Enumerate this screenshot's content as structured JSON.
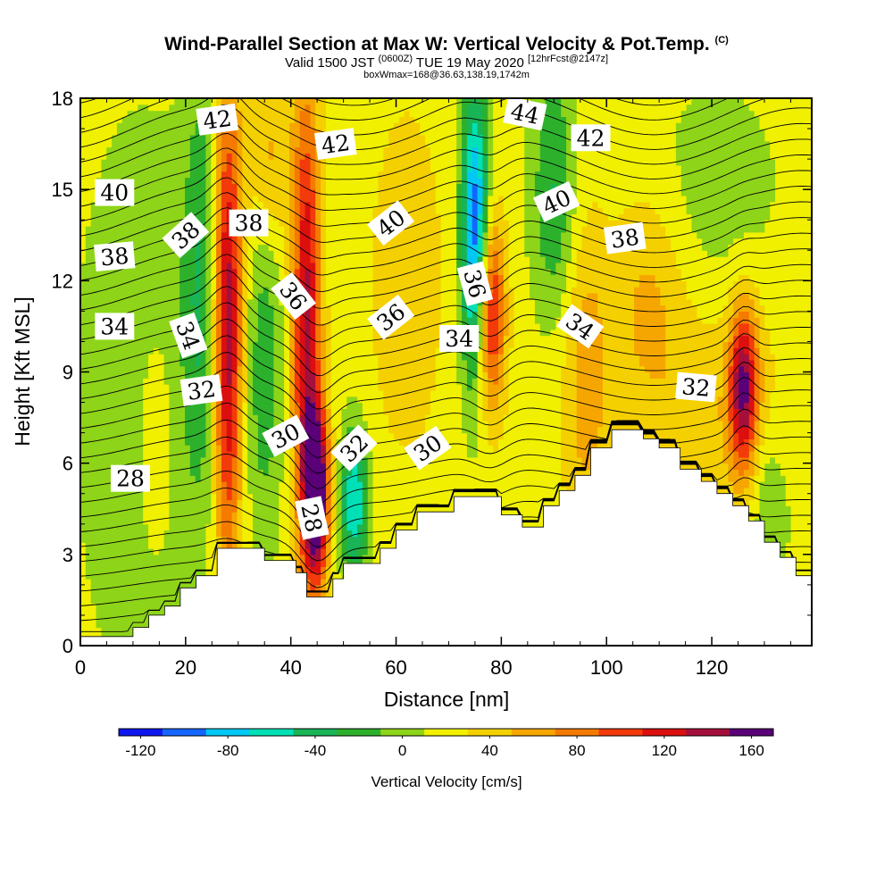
{
  "header": {
    "title_main": "Wind-Parallel Section at Max W: Vertical Velocity & Pot.Temp.",
    "title_mark": "(C)",
    "valid_a": "Valid 1500 JST ",
    "valid_b": "(0600Z)",
    "valid_c": " TUE 19 May 2020 ",
    "valid_d": "[12hrFcst@2147z]",
    "box_info": "boxWmax=168@36.63,138.19,1742m"
  },
  "chart_data": {
    "type": "heatmap",
    "title": "Wind-Parallel Section at Max W: Vertical Velocity & Pot.Temp.",
    "xlabel": "Distance [nm]",
    "ylabel": "Height [Kft MSL]",
    "xlim": [
      0,
      139
    ],
    "ylim": [
      0,
      18
    ],
    "x_ticks": [
      "0",
      "20",
      "40",
      "60",
      "80",
      "100",
      "120"
    ],
    "y_ticks": [
      "0",
      "3",
      "6",
      "9",
      "12",
      "15",
      "18"
    ],
    "colorbar": {
      "label": "Vertical Velocity [cm/s]",
      "tick_labels": [
        "-120",
        "-80",
        "-40",
        "0",
        "40",
        "80",
        "120",
        "160"
      ],
      "levels": [
        -140,
        -120,
        -100,
        -80,
        -60,
        -40,
        -20,
        0,
        20,
        40,
        60,
        80,
        100,
        120,
        140,
        160,
        180
      ],
      "colors": [
        "#0f16f0",
        "#1466ff",
        "#00c8f5",
        "#00e0b6",
        "#18b456",
        "#2db12d",
        "#8ed419",
        "#f0f000",
        "#f5d000",
        "#f6a600",
        "#f57a00",
        "#f23a0a",
        "#dc0f0f",
        "#a50f3c",
        "#5a0078"
      ]
    },
    "terrain": [
      [
        0,
        0.3
      ],
      [
        10,
        0.3
      ],
      [
        10,
        0.6
      ],
      [
        13,
        0.6
      ],
      [
        13,
        1.0
      ],
      [
        16,
        1.0
      ],
      [
        16,
        1.3
      ],
      [
        19,
        1.3
      ],
      [
        19,
        1.9
      ],
      [
        22,
        1.9
      ],
      [
        22,
        2.3
      ],
      [
        26,
        2.3
      ],
      [
        26,
        3.2
      ],
      [
        35,
        3.2
      ],
      [
        35,
        2.8
      ],
      [
        41,
        2.8
      ],
      [
        41,
        2.4
      ],
      [
        43,
        2.4
      ],
      [
        43,
        1.6
      ],
      [
        48,
        1.6
      ],
      [
        48,
        2.2
      ],
      [
        50,
        2.2
      ],
      [
        50,
        2.7
      ],
      [
        57,
        2.7
      ],
      [
        57,
        3.2
      ],
      [
        60,
        3.2
      ],
      [
        60,
        3.8
      ],
      [
        64,
        3.8
      ],
      [
        64,
        4.4
      ],
      [
        71,
        4.4
      ],
      [
        71,
        4.9
      ],
      [
        80,
        4.9
      ],
      [
        80,
        4.3
      ],
      [
        84,
        4.3
      ],
      [
        84,
        3.9
      ],
      [
        88,
        3.9
      ],
      [
        88,
        4.6
      ],
      [
        91,
        4.6
      ],
      [
        91,
        5.1
      ],
      [
        94,
        5.1
      ],
      [
        94,
        5.6
      ],
      [
        97,
        5.6
      ],
      [
        97,
        6.5
      ],
      [
        101,
        6.5
      ],
      [
        101,
        7.1
      ],
      [
        107,
        7.1
      ],
      [
        107,
        6.8
      ],
      [
        110,
        6.8
      ],
      [
        110,
        6.5
      ],
      [
        114,
        6.5
      ],
      [
        114,
        5.8
      ],
      [
        118,
        5.8
      ],
      [
        118,
        5.4
      ],
      [
        121,
        5.4
      ],
      [
        121,
        5.0
      ],
      [
        124,
        5.0
      ],
      [
        124,
        4.6
      ],
      [
        127,
        4.6
      ],
      [
        127,
        4.1
      ],
      [
        130,
        4.1
      ],
      [
        130,
        3.4
      ],
      [
        133,
        3.4
      ],
      [
        133,
        2.9
      ],
      [
        136,
        2.9
      ],
      [
        136,
        2.3
      ],
      [
        139,
        2.3
      ]
    ],
    "vertical_velocity_features": [
      {
        "x": 28,
        "z_bottom": 3,
        "z_top": 18,
        "peak": 130
      },
      {
        "x": 43,
        "z_bottom": 2.5,
        "z_top": 18,
        "peak": 120
      },
      {
        "x": 45,
        "z_bottom": 2.5,
        "z_top": 7.5,
        "peak": 168
      },
      {
        "x": 75,
        "z_bottom": 9,
        "z_top": 18,
        "peak": -130
      },
      {
        "x": 78,
        "z_bottom": 8,
        "z_top": 14,
        "peak": 110
      },
      {
        "x": 52,
        "z_bottom": 2.5,
        "z_top": 7,
        "peak": -90
      },
      {
        "x": 126,
        "z_bottom": 6,
        "z_top": 11,
        "peak": 125
      }
    ],
    "theta_contour_labels": [
      {
        "text": "42",
        "x": 26,
        "z": 17.3,
        "rot": -8
      },
      {
        "text": "40",
        "x": 6.5,
        "z": 14.9,
        "rot": 0
      },
      {
        "text": "38",
        "x": 20,
        "z": 13.5,
        "rot": -42
      },
      {
        "text": "38",
        "x": 32,
        "z": 13.9,
        "rot": 0
      },
      {
        "text": "38",
        "x": 6.5,
        "z": 12.8,
        "rot": -5
      },
      {
        "text": "34",
        "x": 6.5,
        "z": 10.5,
        "rot": 0
      },
      {
        "text": "34",
        "x": 20.5,
        "z": 10.2,
        "rot": 70
      },
      {
        "text": "32",
        "x": 23,
        "z": 8.4,
        "rot": -8
      },
      {
        "text": "30",
        "x": 39,
        "z": 6.9,
        "rot": -28
      },
      {
        "text": "28",
        "x": 9.5,
        "z": 5.5,
        "rot": 0
      },
      {
        "text": "28",
        "x": 44,
        "z": 4.2,
        "rot": 78
      },
      {
        "text": "36",
        "x": 40.5,
        "z": 11.5,
        "rot": 52
      },
      {
        "text": "42",
        "x": 48.5,
        "z": 16.5,
        "rot": -8
      },
      {
        "text": "40",
        "x": 59,
        "z": 13.9,
        "rot": -38
      },
      {
        "text": "36",
        "x": 59,
        "z": 10.8,
        "rot": -38
      },
      {
        "text": "32",
        "x": 52,
        "z": 6.5,
        "rot": -45
      },
      {
        "text": "30",
        "x": 66,
        "z": 6.5,
        "rot": -35
      },
      {
        "text": "34",
        "x": 72,
        "z": 10.1,
        "rot": 0
      },
      {
        "text": "36",
        "x": 75,
        "z": 11.9,
        "rot": 75
      },
      {
        "text": "44",
        "x": 84.5,
        "z": 17.5,
        "rot": 12
      },
      {
        "text": "42",
        "x": 97,
        "z": 16.7,
        "rot": 0
      },
      {
        "text": "40",
        "x": 90.5,
        "z": 14.6,
        "rot": -25
      },
      {
        "text": "38",
        "x": 103.5,
        "z": 13.4,
        "rot": -8
      },
      {
        "text": "34",
        "x": 95,
        "z": 10.5,
        "rot": 35
      },
      {
        "text": "32",
        "x": 117,
        "z": 8.5,
        "rot": 5
      }
    ]
  }
}
